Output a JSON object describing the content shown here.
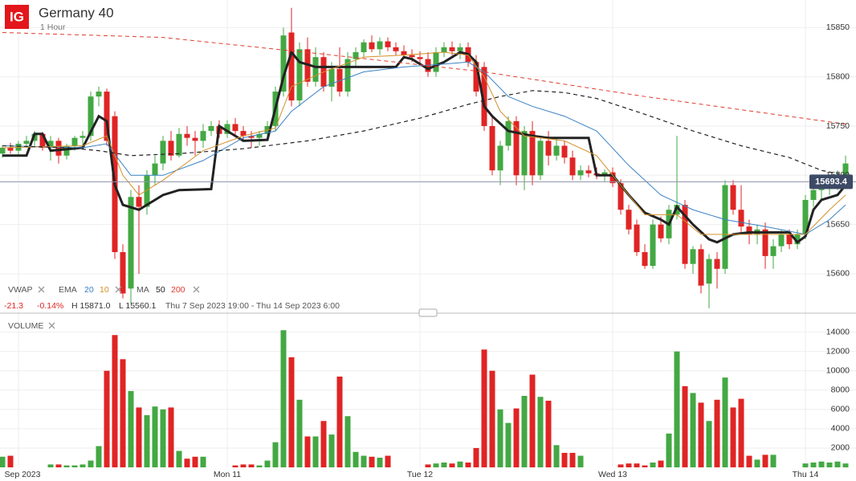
{
  "header": {
    "logo": "IG",
    "title": "Germany 40",
    "interval": "1 Hour"
  },
  "indicators": {
    "vwap": "VWAP",
    "ema": "EMA",
    "ma": "MA",
    "volume": "VOLUME"
  },
  "info": {
    "change": "-21.3",
    "change_pct": "-0.14%",
    "high": "H 15871.0",
    "low": "L 15560.1",
    "range": "Thu 7 Sep 2023 19:00 - Thu 14 Sep 2023 6:00"
  },
  "chart_data": [
    {
      "type": "candlestick",
      "categories": [
        null,
        null,
        "Sep 2023",
        null,
        null,
        null,
        null,
        null,
        null,
        null,
        null,
        null,
        null,
        null,
        null,
        null,
        null,
        null,
        null,
        null,
        null,
        null,
        null,
        null,
        null,
        null,
        null,
        null,
        "Mon 11",
        null,
        null,
        null,
        null,
        null,
        null,
        null,
        null,
        null,
        null,
        null,
        null,
        null,
        null,
        null,
        null,
        null,
        null,
        null,
        null,
        null,
        null,
        null,
        "Tue 12",
        null,
        null,
        null,
        null,
        null,
        null,
        null,
        null,
        null,
        null,
        null,
        null,
        null,
        null,
        null,
        null,
        null,
        null,
        null,
        null,
        null,
        null,
        null,
        "Wed 13",
        null,
        null,
        null,
        null,
        null,
        null,
        null,
        null,
        null,
        null,
        null,
        null,
        null,
        null,
        null,
        null,
        null,
        null,
        null,
        null,
        null,
        null,
        null,
        "Thu 14",
        null,
        null,
        null,
        null,
        null
      ],
      "open": [
        15722,
        15728,
        15725,
        15732,
        15735,
        15742,
        15728,
        15735,
        15720,
        15730,
        15738,
        15740,
        15780,
        15785,
        15760,
        15622,
        15585,
        15678,
        15668,
        15700,
        15712,
        15735,
        15720,
        15742,
        15738,
        15735,
        15745,
        15750,
        15742,
        15752,
        15745,
        15740,
        15738,
        15742,
        15750,
        15785,
        15845,
        15776,
        15828,
        15795,
        15820,
        15790,
        15808,
        15785,
        15818,
        15825,
        15835,
        15828,
        15836,
        15830,
        15826,
        15822,
        15820,
        15818,
        15805,
        15825,
        15830,
        15826,
        15830,
        15815,
        15810,
        15750,
        15705,
        15730,
        15755,
        15700,
        15745,
        15700,
        15735,
        15720,
        15730,
        15718,
        15700,
        15705,
        15702,
        15700,
        15703,
        15692,
        15665,
        15650,
        15622,
        15608,
        15650,
        15636,
        15660,
        15670,
        15610,
        15625,
        15590,
        15615,
        15605,
        15690,
        15665,
        15648,
        15640,
        15645,
        15618,
        15628,
        15640,
        15630,
        15640,
        15675,
        15685,
        15688,
        15692,
        15700
      ],
      "high": [
        15730,
        15733,
        15735,
        15740,
        15745,
        15744,
        15740,
        15738,
        15732,
        15740,
        15745,
        15785,
        15790,
        15788,
        15765,
        15630,
        15685,
        15690,
        15705,
        15720,
        15740,
        15745,
        15748,
        15750,
        15745,
        15752,
        15755,
        15756,
        15756,
        15758,
        15750,
        15745,
        15745,
        15755,
        15790,
        15850,
        15870,
        15835,
        15840,
        15830,
        15825,
        15815,
        15830,
        15825,
        15830,
        15838,
        15842,
        15840,
        15840,
        15835,
        15832,
        15828,
        15826,
        15825,
        15830,
        15835,
        15836,
        15834,
        15835,
        15822,
        15815,
        15760,
        15735,
        15760,
        15760,
        15750,
        15755,
        15740,
        15745,
        15738,
        15735,
        15725,
        15710,
        15710,
        15708,
        15706,
        15708,
        15696,
        15670,
        15655,
        15630,
        15655,
        15658,
        15670,
        15740,
        15675,
        15628,
        15630,
        15620,
        15622,
        15695,
        15695,
        15690,
        15655,
        15650,
        15652,
        15635,
        15645,
        15645,
        15645,
        15680,
        15690,
        15692,
        15698,
        15705,
        15720
      ],
      "low": [
        15718,
        15722,
        15720,
        15728,
        15730,
        15725,
        15715,
        15712,
        15716,
        15725,
        15730,
        15735,
        15770,
        15730,
        15615,
        15575,
        15570,
        15600,
        15660,
        15690,
        15705,
        15715,
        15718,
        15730,
        15720,
        15728,
        15740,
        15738,
        15738,
        15740,
        15735,
        15728,
        15730,
        15735,
        15745,
        15780,
        15770,
        15770,
        15790,
        15790,
        15785,
        15775,
        15780,
        15780,
        15810,
        15820,
        15825,
        15822,
        15826,
        15822,
        15818,
        15815,
        15812,
        15800,
        15800,
        15820,
        15822,
        15818,
        15810,
        15780,
        15745,
        15700,
        15690,
        15725,
        15690,
        15685,
        15690,
        15695,
        15710,
        15715,
        15712,
        15695,
        15695,
        15698,
        15696,
        15694,
        15688,
        15660,
        15640,
        15618,
        15605,
        15605,
        15632,
        15630,
        15655,
        15605,
        15600,
        15580,
        15565,
        15585,
        15600,
        15660,
        15640,
        15630,
        15630,
        15605,
        15605,
        15622,
        15625,
        15625,
        15635,
        15668,
        15675,
        15680,
        15685,
        15695
      ],
      "close": [
        15728,
        15725,
        15732,
        15735,
        15742,
        15728,
        15735,
        15720,
        15730,
        15738,
        15740,
        15780,
        15785,
        15735,
        15622,
        15580,
        15678,
        15668,
        15700,
        15712,
        15735,
        15720,
        15742,
        15738,
        15735,
        15745,
        15750,
        15742,
        15752,
        15745,
        15740,
        15738,
        15742,
        15750,
        15785,
        15842,
        15776,
        15828,
        15795,
        15820,
        15790,
        15808,
        15785,
        15818,
        15825,
        15835,
        15828,
        15836,
        15830,
        15826,
        15822,
        15820,
        15818,
        15805,
        15825,
        15830,
        15826,
        15830,
        15815,
        15785,
        15750,
        15705,
        15730,
        15755,
        15700,
        15745,
        15700,
        15735,
        15720,
        15730,
        15718,
        15700,
        15705,
        15702,
        15700,
        15703,
        15692,
        15665,
        15645,
        15622,
        15608,
        15650,
        15636,
        15665,
        15670,
        15610,
        15625,
        15588,
        15615,
        15605,
        15690,
        15665,
        15648,
        15640,
        15645,
        15618,
        15628,
        15640,
        15630,
        15640,
        15675,
        15685,
        15688,
        15692,
        15700,
        15712
      ],
      "up_color": "#43a843",
      "down_color": "#e02424",
      "lines": [
        {
          "name": "VWAP",
          "color": "#222222",
          "width": 3,
          "dash": false,
          "legend": "vwap",
          "x": [
            0,
            3,
            4,
            5,
            6,
            10,
            12,
            13,
            14,
            15,
            17,
            20,
            22,
            26,
            27,
            28,
            30,
            33,
            35,
            36,
            37,
            39,
            42,
            49,
            50,
            51,
            53,
            55,
            57,
            58,
            59,
            60,
            61,
            63,
            66,
            68,
            73,
            74,
            76,
            78,
            80,
            82,
            83,
            84,
            86,
            88,
            89,
            91,
            93,
            98,
            99,
            100,
            101,
            102,
            104,
            105
          ],
          "values": [
            15720,
            15720,
            15742,
            15742,
            15725,
            15728,
            15760,
            15755,
            15690,
            15670,
            15665,
            15680,
            15685,
            15686,
            15750,
            15745,
            15735,
            15736,
            15800,
            15825,
            15815,
            15810,
            15810,
            15810,
            15820,
            15818,
            15808,
            15815,
            15825,
            15823,
            15815,
            15770,
            15760,
            15745,
            15740,
            15738,
            15738,
            15700,
            15700,
            15680,
            15662,
            15655,
            15650,
            15668,
            15650,
            15635,
            15632,
            15640,
            15642,
            15642,
            15632,
            15638,
            15665,
            15675,
            15680,
            15690
          ]
        },
        {
          "name": "20",
          "color": "#3a82c4",
          "width": 1,
          "dash": false,
          "legend": "ema",
          "x": [
            0,
            10,
            13,
            16,
            20,
            25,
            30,
            34,
            36,
            40,
            45,
            50,
            55,
            58,
            60,
            63,
            66,
            70,
            74,
            78,
            82,
            86,
            90,
            95,
            100,
            103,
            105
          ],
          "values": [
            15730,
            15728,
            15732,
            15700,
            15700,
            15715,
            15738,
            15745,
            15765,
            15790,
            15805,
            15810,
            15813,
            15815,
            15805,
            15780,
            15770,
            15760,
            15745,
            15710,
            15680,
            15665,
            15655,
            15648,
            15640,
            15655,
            15670
          ]
        },
        {
          "name": "10",
          "color": "#d4902a",
          "width": 1,
          "dash": false,
          "legend": "ema",
          "x": [
            0,
            10,
            13,
            15,
            17,
            20,
            25,
            30,
            34,
            36,
            40,
            45,
            50,
            55,
            58,
            60,
            62,
            65,
            70,
            74,
            77,
            80,
            84,
            87,
            90,
            95,
            100,
            103,
            105
          ],
          "values": [
            15728,
            15730,
            15740,
            15700,
            15680,
            15695,
            15725,
            15740,
            15748,
            15790,
            15805,
            15820,
            15822,
            15825,
            15822,
            15800,
            15765,
            15740,
            15735,
            15720,
            15690,
            15660,
            15660,
            15640,
            15640,
            15640,
            15640,
            15665,
            15680
          ]
        },
        {
          "name": "50",
          "color": "#222222",
          "width": 1.2,
          "dash": true,
          "legend": "ma",
          "x": [
            0,
            8,
            12,
            16,
            22,
            30,
            38,
            45,
            52,
            58,
            62,
            66,
            70,
            74,
            80,
            86,
            92,
            98,
            102,
            105
          ],
          "values": [
            15730,
            15728,
            15725,
            15720,
            15722,
            15727,
            15735,
            15745,
            15758,
            15772,
            15780,
            15786,
            15784,
            15778,
            15762,
            15745,
            15730,
            15718,
            15705,
            15700
          ]
        },
        {
          "name": "200",
          "color": "#e03a2a",
          "width": 1,
          "dash": true,
          "legend": "ma",
          "x": [
            0,
            20,
            40,
            60,
            80,
            105
          ],
          "values": [
            15845,
            15840,
            15823,
            15805,
            15780,
            15752
          ]
        }
      ],
      "last_price": 15693.4,
      "ylim": [
        15560,
        15878
      ],
      "yticks": [
        15600,
        15650,
        15700,
        15750,
        15800,
        15850
      ],
      "grid": true
    },
    {
      "type": "bar",
      "title": "VOLUME",
      "values": [
        1100,
        1200,
        null,
        null,
        null,
        null,
        300,
        300,
        200,
        200,
        300,
        700,
        2200,
        10000,
        13700,
        11200,
        7900,
        6200,
        5400,
        6300,
        6000,
        6200,
        1700,
        900,
        1100,
        1100,
        null,
        null,
        null,
        200,
        300,
        300,
        200,
        700,
        2600,
        14200,
        11400,
        7000,
        3200,
        3200,
        4800,
        3400,
        9400,
        5300,
        1600,
        1200,
        1100,
        1000,
        1200,
        null,
        null,
        null,
        null,
        300,
        400,
        500,
        400,
        600,
        500,
        2000,
        12200,
        10000,
        6000,
        4600,
        6100,
        7400,
        9600,
        7300,
        6900,
        2300,
        1500,
        1500,
        1200,
        null,
        null,
        null,
        null,
        300,
        400,
        400,
        200,
        500,
        700,
        3500,
        12000,
        8400,
        7700,
        6700,
        4800,
        7000,
        9300,
        6200,
        7100,
        1200,
        800,
        1300,
        1300,
        null,
        null,
        null,
        400,
        500,
        600,
        500,
        600,
        400
      ],
      "ylim": [
        0,
        15300
      ],
      "yticks": [
        2000,
        4000,
        6000,
        8000,
        10000,
        12000,
        14000
      ],
      "grid": true
    }
  ]
}
